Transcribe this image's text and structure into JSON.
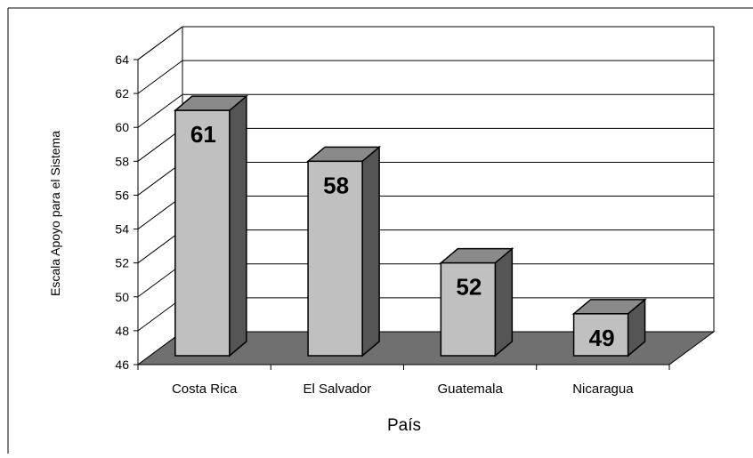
{
  "chart_data": {
    "type": "bar",
    "categories": [
      "Costa Rica",
      "El Salvador",
      "Guatemala",
      "Nicaragua"
    ],
    "values": [
      61,
      58,
      52,
      49
    ],
    "data_labels": [
      "61",
      "58",
      "52",
      "49"
    ],
    "title": "",
    "xlabel": "País",
    "ylabel": "Escala Apoyo para el Sistema",
    "ylim": [
      46,
      64
    ],
    "yticks": [
      "46",
      "48",
      "50",
      "52",
      "54",
      "56",
      "58",
      "60",
      "62",
      "64"
    ],
    "grid": true,
    "three_d": true,
    "legend": "none",
    "colors": {
      "bar_front": "#c0c0c0",
      "bar_top": "#8a8a8a",
      "bar_side": "#555555",
      "floor": "#707070",
      "wall": "#ffffff",
      "grid": "#000000"
    }
  }
}
